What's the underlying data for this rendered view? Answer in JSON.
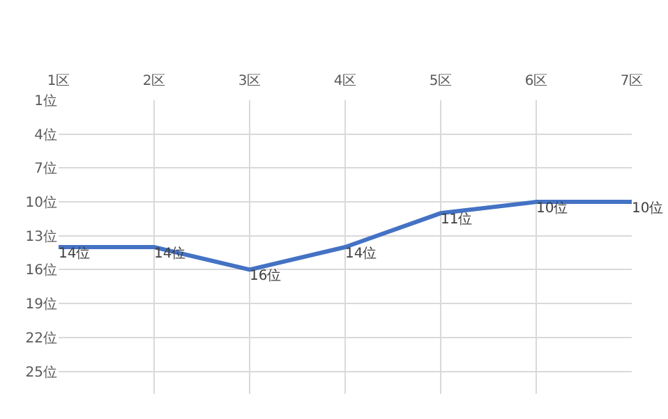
{
  "chart_data": {
    "type": "line",
    "categories": [
      "1区",
      "2区",
      "3区",
      "4区",
      "5区",
      "6区",
      "7区"
    ],
    "series": [
      {
        "color": "#4472c4",
        "values": [
          14,
          14,
          16,
          14,
          11,
          10,
          10
        ],
        "value_labels": [
          "14位",
          "14位",
          "16位",
          "14位",
          "11位",
          "10位",
          "10位"
        ]
      }
    ],
    "ylim": [
      27,
      1
    ],
    "yticks": [
      {
        "value": 1,
        "label": "1位"
      },
      {
        "value": 4,
        "label": "4位"
      },
      {
        "value": 7,
        "label": "7位"
      },
      {
        "value": 10,
        "label": "10位"
      },
      {
        "value": 13,
        "label": "13位"
      },
      {
        "value": 16,
        "label": "16位"
      },
      {
        "value": 19,
        "label": "19位"
      },
      {
        "value": 22,
        "label": "22位"
      },
      {
        "value": 25,
        "label": "25位"
      }
    ],
    "grid": true,
    "marker": "none",
    "line_style": "solid"
  }
}
